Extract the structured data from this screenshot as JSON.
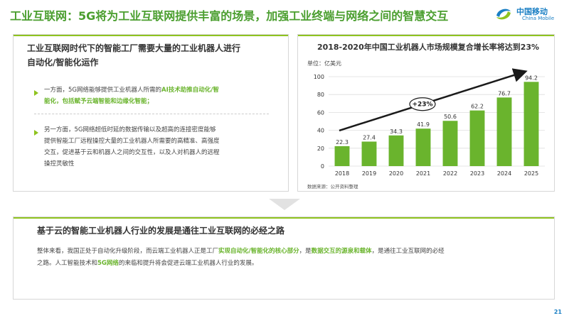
{
  "header": {
    "title": "工业互联网：5G将为工业互联网提供丰富的场景，加强工业终端与网络之间的智慧交互",
    "logo_cn": "中国移动",
    "logo_en": "China Mobile"
  },
  "left_panel": {
    "heading_line1": "工业互联网时代下的智能工厂需要大量的工业机器人进行",
    "heading_line2": "自动化/智能化运作",
    "bullet1": {
      "line1_prefix": "一方面，5G网络能够提供工业机器人所需的",
      "line1_highlight": "AI技术助推自动化/智",
      "line2_highlight": "能化，包括赋予云端智能和边缘化智能；"
    },
    "bullet2": {
      "line1": "另一方面，5G网络超低时延的数据传输以及超高的连接密度能够",
      "line2": "提供智能工厂远程操控大量的工业机器人所需要的高精准、高强度",
      "line3": "交互，促进基于云和机器人之间的交互性，以及人对机器人的远程",
      "line4": "操控灵敏性"
    }
  },
  "right_panel": {
    "unit": "单位：亿美元",
    "source": "数据来源：公开资料整理",
    "growth_label": "+23%"
  },
  "chart_data": {
    "type": "bar",
    "title": "2018-2020年中国工业机器人市场规模复合增长率将达到23%",
    "categories": [
      "2018",
      "2019",
      "2020",
      "2021",
      "2022",
      "2023",
      "2024",
      "2025"
    ],
    "values": [
      22.3,
      27.4,
      34.3,
      41.9,
      50.6,
      62.2,
      76.7,
      94.2
    ],
    "y_ticks": [
      "0",
      "20",
      "40",
      "60",
      "80",
      "100"
    ],
    "ylim": [
      0,
      100
    ],
    "xlabel": "",
    "ylabel": "",
    "grid": true,
    "bar_color": "#6ab42d",
    "annotation": "+23%"
  },
  "bottom_panel": {
    "heading": "基于云的智能工业机器人行业的发展是通往工业互联网的必经之路",
    "text_p1": "整体来看，我国正处于自动化升级阶段，而云端工业机器人正是工厂",
    "text_h1": "实现自动化/智能化的核心部分",
    "text_p2": "，是",
    "text_h2": "数据交互的源泉和载体",
    "text_p3": "，是通往工业互联网的必经",
    "text_p4": "之路。人工智能技术和",
    "text_h3": "5G网络",
    "text_p5": "的来临和提升将会促进云端工业机器人行业的发展。"
  },
  "footer": {
    "page_number": "21"
  },
  "colors": {
    "accent_green": "#8fc31f",
    "title_green": "#4a9e2e",
    "bar_green": "#6ab42d",
    "brand_blue": "#1a7fc4"
  }
}
